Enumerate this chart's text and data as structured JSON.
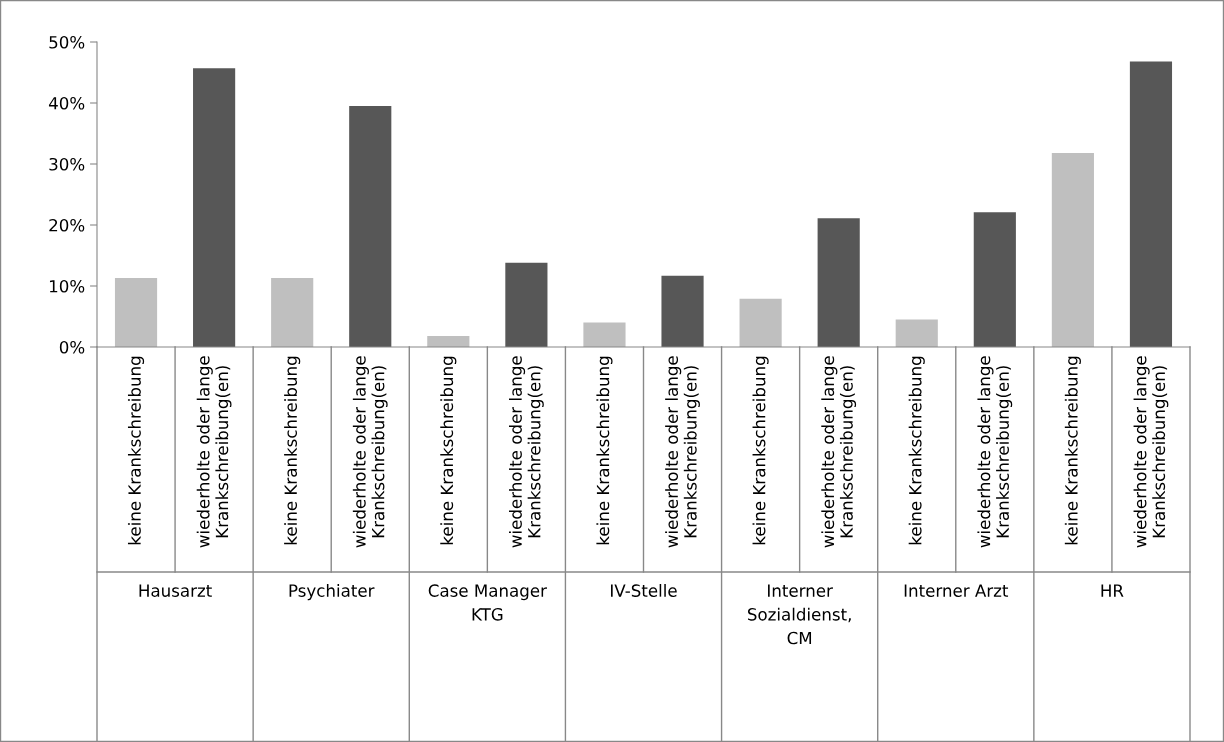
{
  "chart_data": {
    "type": "bar",
    "categories": [
      "keine Krankschreibung",
      "wiederholte oder lange\nKrankschreibung(en)",
      "keine Krankschreibung",
      "wiederholte oder lange\nKrankschreibung(en)",
      "keine Krankschreibung",
      "wiederholte oder lange\nKrankschreibung(en)",
      "keine Krankschreibung",
      "wiederholte oder lange\nKrankschreibung(en)",
      "keine Krankschreibung",
      "wiederholte oder lange\nKrankschreibung(en)",
      "keine Krankschreibung",
      "wiederholte oder lange\nKrankschreibung(en)",
      "keine Krankschreibung",
      "wiederholte oder lange\nKrankschreibung(en)"
    ],
    "values": [
      11.3,
      45.7,
      11.3,
      39.5,
      1.8,
      13.8,
      4.0,
      11.7,
      7.9,
      21.1,
      4.5,
      22.1,
      31.8,
      46.8
    ],
    "colors": [
      "#bfbfbf",
      "#575757",
      "#bfbfbf",
      "#575757",
      "#bfbfbf",
      "#575757",
      "#bfbfbf",
      "#575757",
      "#bfbfbf",
      "#575757",
      "#bfbfbf",
      "#575757",
      "#bfbfbf",
      "#575757"
    ],
    "annotations": [
      "Hausarzt",
      "Psychiater",
      "Case Manager\nKTG",
      "IV-Stelle",
      "Interner\nSozialdienst,\nCM",
      "Interner Arzt",
      "HR"
    ],
    "ylim": [
      0,
      50
    ],
    "yticks": [
      {
        "value": 0,
        "label": "0%"
      },
      {
        "value": 10,
        "label": "10%"
      },
      {
        "value": 20,
        "label": "20%"
      },
      {
        "value": 30,
        "label": "30%"
      },
      {
        "value": 40,
        "label": "40%"
      },
      {
        "value": 50,
        "label": "50%"
      }
    ],
    "grid": false,
    "legend": false
  }
}
